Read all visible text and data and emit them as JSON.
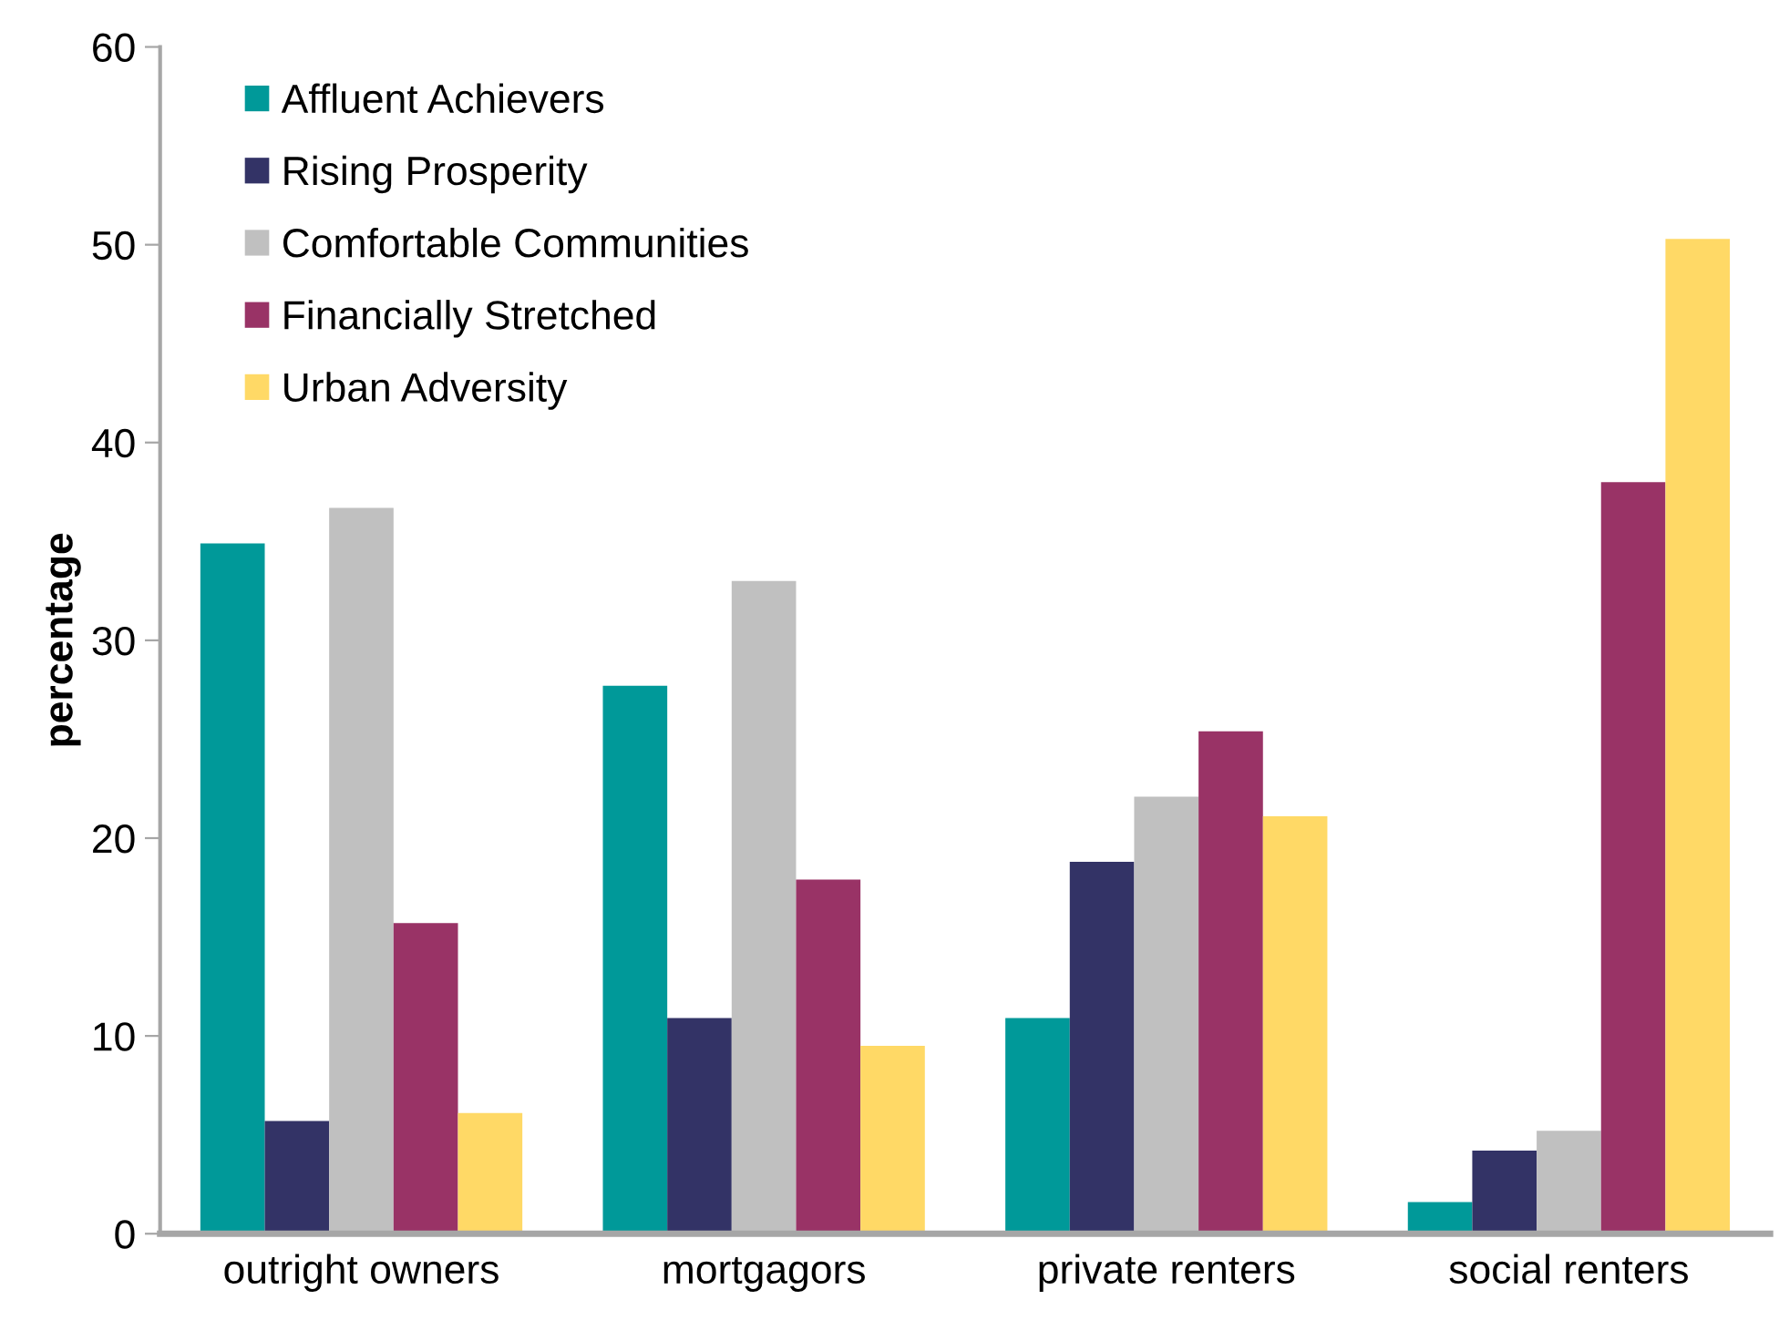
{
  "chart_data": {
    "type": "bar",
    "ylabel": "percentage",
    "categories": [
      "outright owners",
      "mortgagors",
      "private renters",
      "social renters"
    ],
    "series": [
      {
        "name": "Affluent Achievers",
        "color": "#009999",
        "values": [
          34.9,
          27.7,
          10.9,
          1.6
        ]
      },
      {
        "name": "Rising Prosperity",
        "color": "#333366",
        "values": [
          5.7,
          10.9,
          18.8,
          4.2
        ]
      },
      {
        "name": "Comfortable Communities",
        "color": "#c0c0c0",
        "values": [
          36.7,
          33.0,
          22.1,
          5.2
        ]
      },
      {
        "name": "Financially Stretched",
        "color": "#993366",
        "values": [
          15.7,
          17.9,
          25.4,
          38.0
        ]
      },
      {
        "name": "Urban Adversity",
        "color": "#ffd966",
        "values": [
          6.1,
          9.5,
          21.1,
          50.3
        ]
      }
    ],
    "ylim": [
      0,
      60
    ],
    "yticks": [
      0,
      10,
      20,
      30,
      40,
      50,
      60
    ],
    "grid": false,
    "legend": "top left"
  }
}
